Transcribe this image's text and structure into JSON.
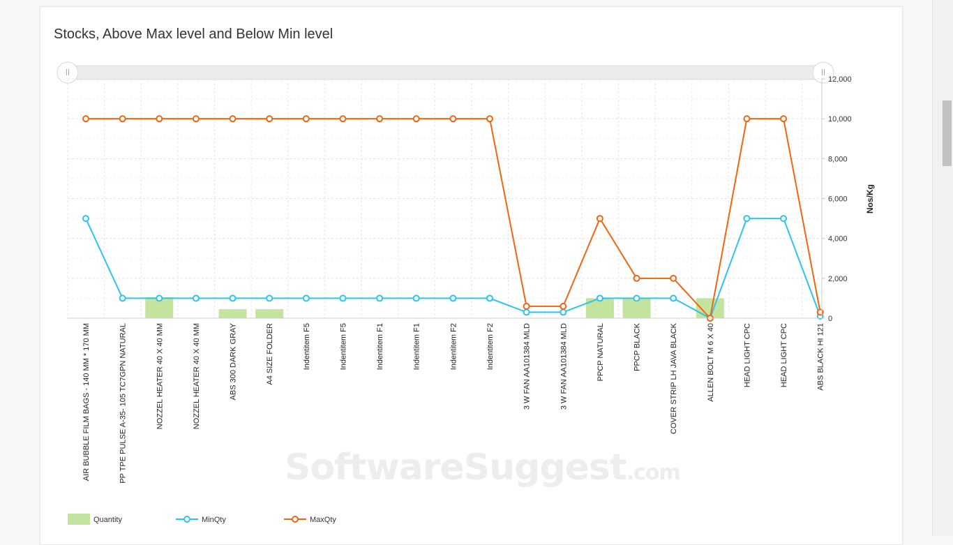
{
  "title": "Stocks, Above Max level and Below Min level",
  "watermark": {
    "main": "SoftwareSuggest",
    "suffix": ".com"
  },
  "chart_data": {
    "type": "line",
    "ylabel": "Nos/Kg",
    "xlabel": "",
    "ylim": [
      0,
      12000
    ],
    "yticks": [
      "0",
      "2,000",
      "4,000",
      "6,000",
      "8,000",
      "10,000",
      "12,000"
    ],
    "categories": [
      "AIR BUBBLE FILM BAGS - 140 MM * 170 MM",
      "PP TPE PULSE A-35- 105 TC7GPN NATURAL",
      "NOZZEL HEATER 40 X 40 MM",
      "NOZZEL HEATER 40 X 40 MM",
      "ABS 300 DARK GRAY",
      "A4 SIZE FOLDER",
      "Indentitem F5",
      "Indentitem F5",
      "Indentitem F1",
      "Indentitem F1",
      "Indentitem F2",
      "Indentitem F2",
      "3 W FAN AA101384 MLD",
      "3 W FAN AA101384 MLD",
      "PPCP NATURAL",
      "PPCP BLACK",
      "COVER STRIP LH JAVA BLACK",
      "ALLEN BOLT M 6 X 40",
      "HEAD LIGHT CPC",
      "HEAD LIGHT CPC",
      "ABS BLACK HI 121"
    ],
    "series": [
      {
        "name": "Quantity",
        "kind": "bar",
        "color": "#c3e39f",
        "values": [
          0,
          0,
          1050,
          0,
          450,
          450,
          0,
          0,
          0,
          0,
          0,
          0,
          0,
          0,
          1000,
          1000,
          0,
          1000,
          0,
          0,
          0
        ]
      },
      {
        "name": "MinQty",
        "kind": "line",
        "color": "#2dc3f0",
        "values": [
          5000,
          1000,
          1000,
          1000,
          1000,
          1000,
          1000,
          1000,
          1000,
          1000,
          1000,
          1000,
          300,
          300,
          1000,
          1000,
          1000,
          0,
          5000,
          5000,
          100
        ]
      },
      {
        "name": "MaxQty",
        "kind": "line",
        "color": "#f0650f",
        "values": [
          10000,
          10000,
          10000,
          10000,
          10000,
          10000,
          10000,
          10000,
          10000,
          10000,
          10000,
          10000,
          600,
          600,
          5000,
          2000,
          2000,
          0,
          10000,
          10000,
          300
        ]
      }
    ],
    "grid": true,
    "legend": "bottom-left"
  }
}
